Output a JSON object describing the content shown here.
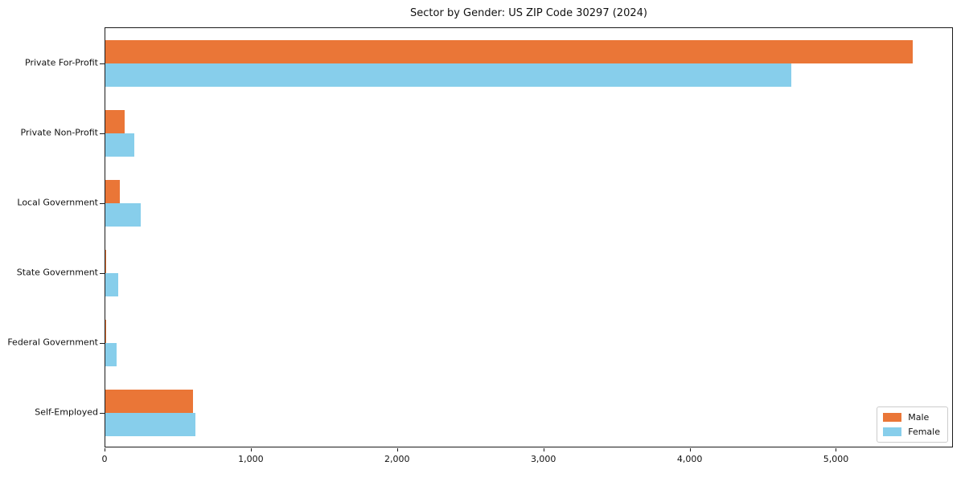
{
  "title": "Sector by Gender: US ZIP Code 30297 (2024)",
  "chart_data": {
    "type": "bar",
    "orientation": "horizontal",
    "title": "Sector by Gender: US ZIP Code 30297 (2024)",
    "categories": [
      "Private For-Profit",
      "Private Non-Profit",
      "Local Government",
      "State Government",
      "Federal Government",
      "Self-Employed"
    ],
    "series": [
      {
        "name": "Male",
        "color": "#ea7637",
        "values": [
          5530,
          130,
          100,
          8,
          6,
          600
        ]
      },
      {
        "name": "Female",
        "color": "#87ceeb",
        "values": [
          4700,
          200,
          240,
          90,
          75,
          615
        ]
      }
    ],
    "xlabel": "",
    "ylabel": "",
    "xlim": [
      0,
      5800
    ],
    "x_ticks": [
      0,
      1000,
      2000,
      3000,
      4000,
      5000
    ],
    "x_tick_labels": [
      "0",
      "1,000",
      "2,000",
      "3,000",
      "4,000",
      "5,000"
    ],
    "grid": false,
    "legend_position": "lower right",
    "background": "#ffffff",
    "spine_color": "#1a1a1a"
  },
  "legend": {
    "items": [
      {
        "label": "Male",
        "color": "#ea7637"
      },
      {
        "label": "Female",
        "color": "#87ceeb"
      }
    ]
  }
}
